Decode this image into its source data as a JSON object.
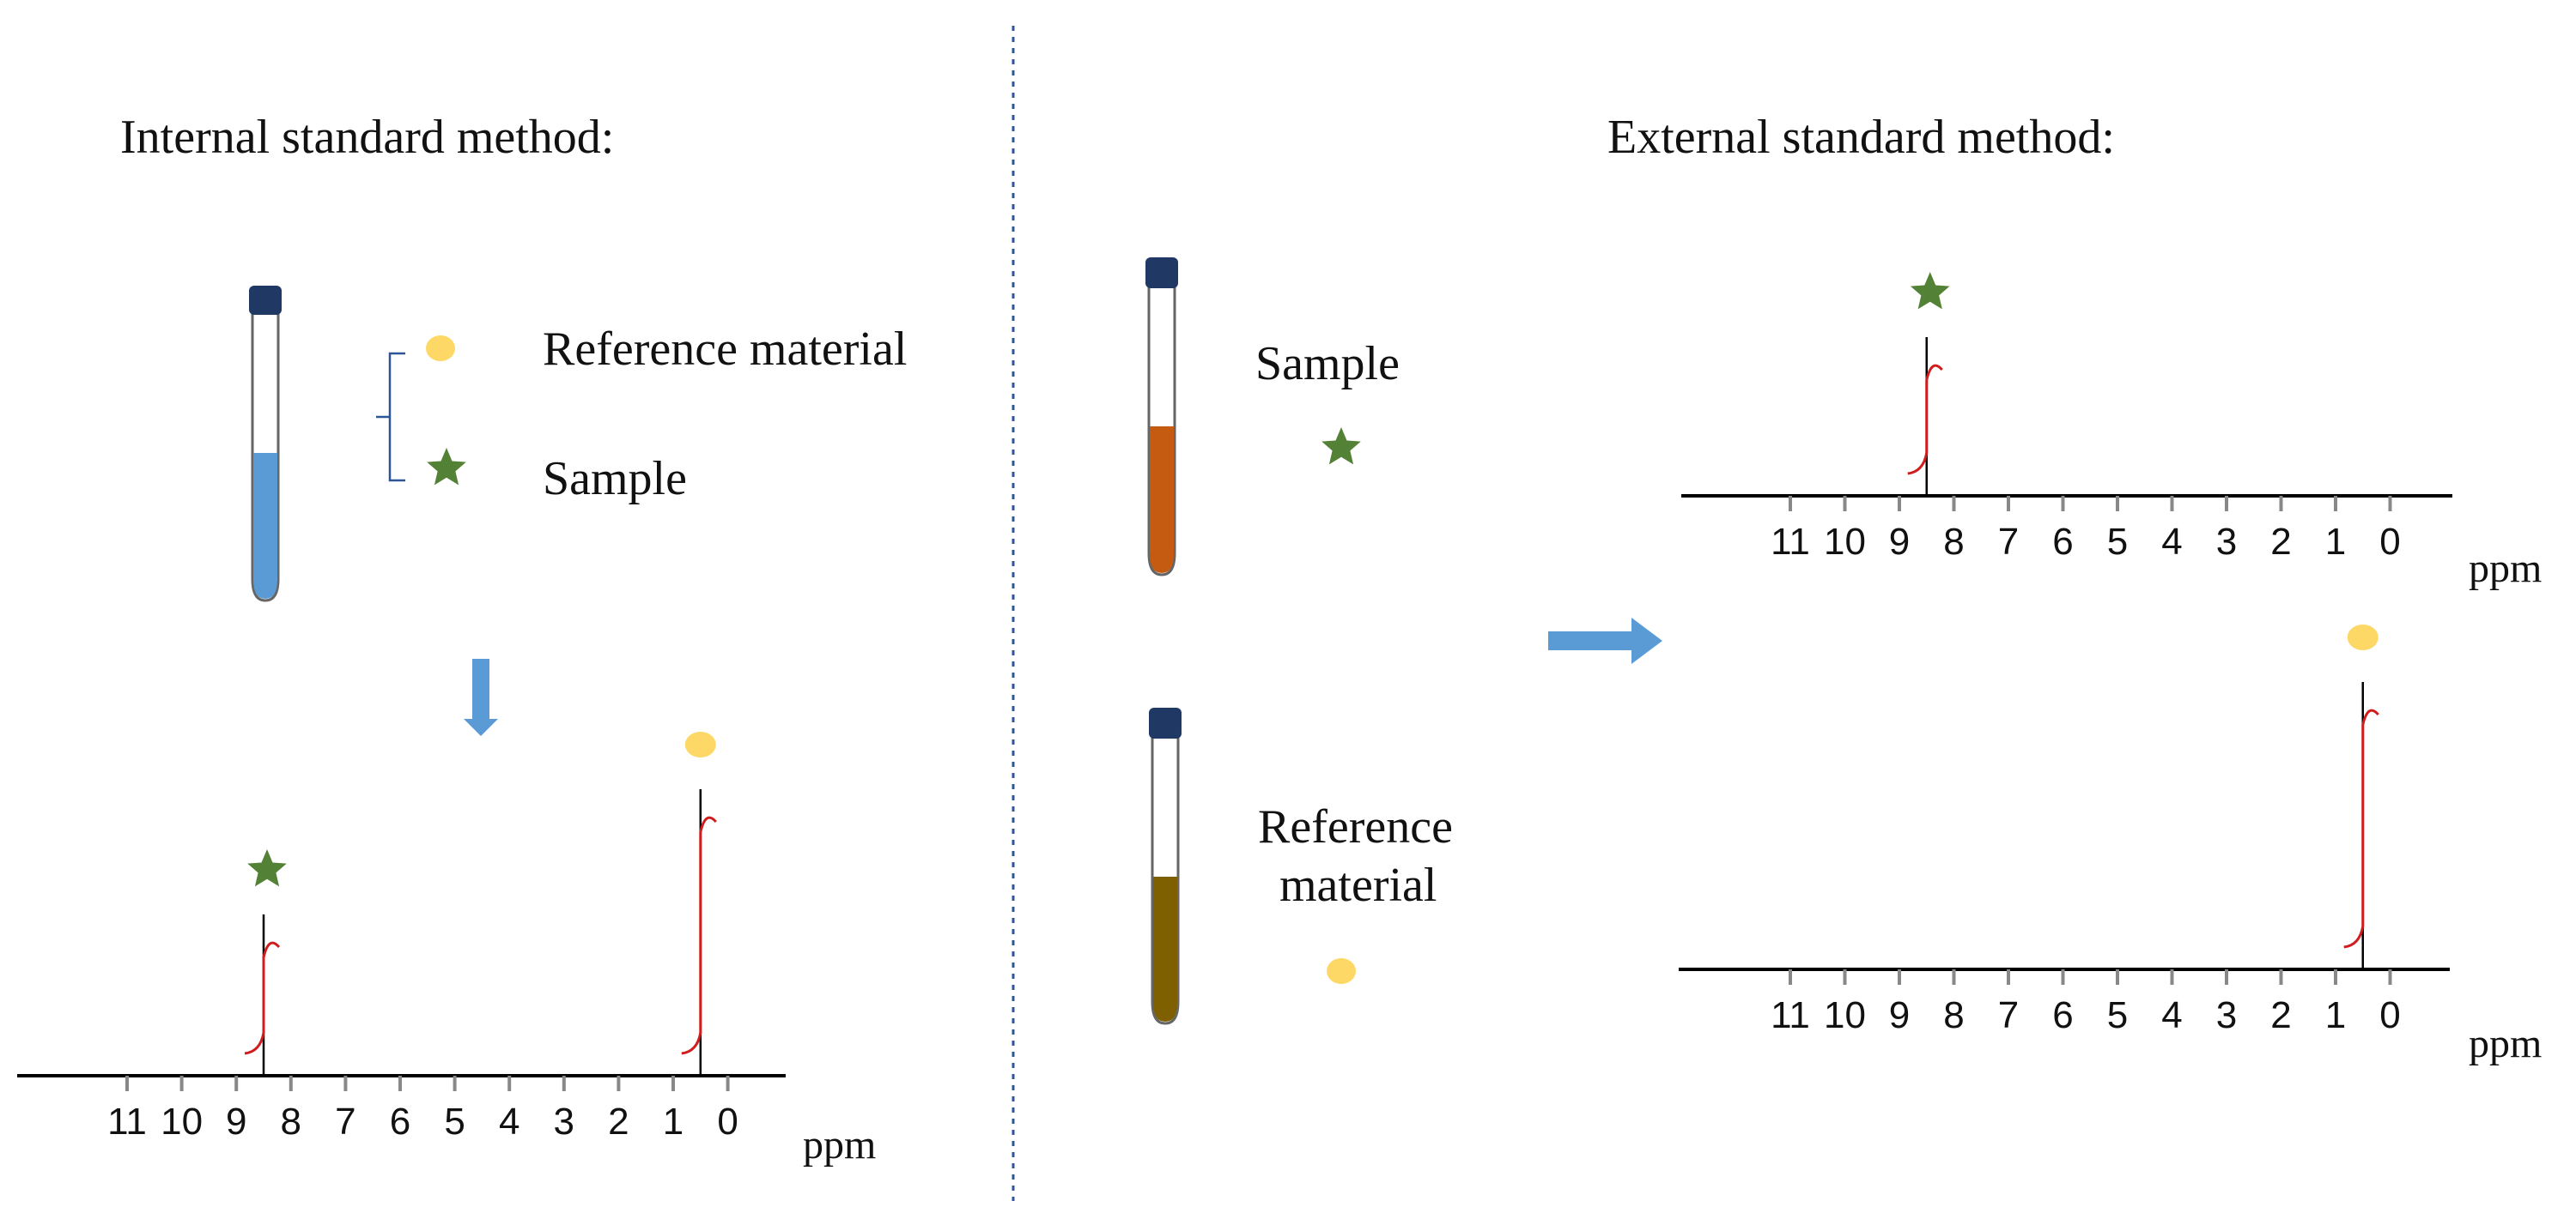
{
  "titles": {
    "internal": "Internal standard method:",
    "external": "External standard method:"
  },
  "legend": {
    "reference": "Reference material",
    "sample": "Sample"
  },
  "external_labels": {
    "sample": "Sample",
    "reference_line1": "Reference",
    "reference_line2": "material"
  },
  "axis": {
    "ticks": [
      "11",
      "10",
      "9",
      "8",
      "7",
      "6",
      "5",
      "4",
      "3",
      "2",
      "1",
      "0"
    ],
    "unit": "ppm"
  },
  "spectra": {
    "internal": [
      {
        "marker": "star",
        "shift_ppm": 8.5
      },
      {
        "marker": "dot",
        "shift_ppm": 0.5
      }
    ],
    "external_sample": [
      {
        "marker": "star",
        "shift_ppm": 8.5
      }
    ],
    "external_reference": [
      {
        "marker": "dot",
        "shift_ppm": 0.5
      }
    ]
  },
  "colors": {
    "dot": "#fdd867",
    "star": "#538135",
    "tube_cap": "#1f3864",
    "internal_liquid": "#5b9bd5",
    "sample_liquid": "#c55a11",
    "reference_liquid": "#7f6000",
    "arrow": "#5b9bd5",
    "integral": "#d01c1c",
    "divider": "#2e5597"
  },
  "icons": [
    "nmr-tube-icon",
    "star-marker-icon",
    "dot-marker-icon",
    "arrow-down-icon",
    "arrow-right-icon"
  ]
}
